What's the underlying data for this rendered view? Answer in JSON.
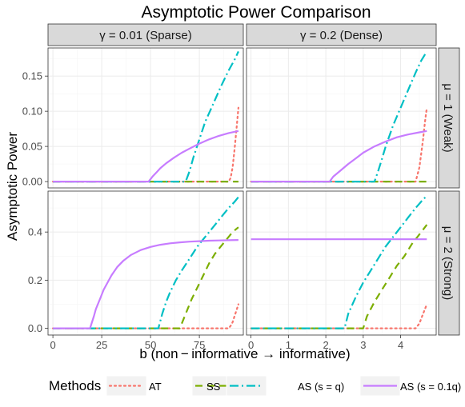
{
  "chart_data": {
    "type": "line",
    "title": "Asymptotic Power Comparison",
    "xlabel": "b (non − informative → informative)",
    "ylabel": "Asymptotic Power",
    "legend": {
      "title": "Methods",
      "placement": "bottom",
      "entries": [
        "AT",
        "SS",
        "AS (s = q)",
        "AS (s = 0.1q)"
      ]
    },
    "colors": {
      "AT": "#f8766d",
      "SS": "#7cae00",
      "AS (s = q)": "#00bfc4",
      "AS (s = 0.1q)": "#c77cff",
      "strip_bg": "#d9d9d9",
      "panel_bg": "#ffffff",
      "grid": "#ebebeb",
      "border": "#333333"
    },
    "grid": true,
    "col_strips": [
      "γ = 0.01 (Sparse)",
      "γ = 0.2 (Dense)"
    ],
    "row_strips": [
      "μ = 1 (Weak)",
      "μ = 2 (Strong)"
    ],
    "x_axes": [
      {
        "xlim": [
          -2.5,
          97.5
        ],
        "ticks": [
          0,
          25,
          50,
          75
        ],
        "tick_labels": [
          "0",
          "25",
          "50",
          "75"
        ]
      },
      {
        "xlim": [
          -0.12,
          4.95
        ],
        "ticks": [
          0,
          1,
          2,
          3,
          4
        ],
        "tick_labels": [
          "0",
          "1",
          "2",
          "3",
          "4"
        ]
      }
    ],
    "y_axes": [
      {
        "ylim": [
          -0.009,
          0.19
        ],
        "ticks": [
          0,
          0.05,
          0.1,
          0.15
        ],
        "tick_labels": [
          "0.00",
          "0.05",
          "0.10",
          "0.15"
        ]
      },
      {
        "ylim": [
          -0.028,
          0.57
        ],
        "ticks": [
          0,
          0.2,
          0.4
        ],
        "tick_labels": [
          "0.0",
          "0.2",
          "0.4"
        ]
      }
    ],
    "panels": [
      {
        "row": 0,
        "col": 0,
        "series": [
          {
            "name": "AT",
            "x": [
              0,
              90,
              91,
              92,
              93,
              94,
              95
            ],
            "y": [
              0,
              0,
              0.005,
              0.02,
              0.045,
              0.075,
              0.105
            ]
          },
          {
            "name": "SS",
            "x": [
              0,
              95
            ],
            "y": [
              0,
              0
            ]
          },
          {
            "name": "AS (s = q)",
            "x": [
              0,
              68,
              70,
              72,
              75,
              78,
              82,
              86,
              90,
              93,
              95
            ],
            "y": [
              0,
              0,
              0.015,
              0.035,
              0.06,
              0.085,
              0.11,
              0.135,
              0.158,
              0.173,
              0.185
            ]
          },
          {
            "name": "AS (s = 0.1q)",
            "x": [
              0,
              49,
              51,
              53,
              55,
              58,
              62,
              66,
              70,
              75,
              80,
              85,
              90,
              95
            ],
            "y": [
              0,
              0,
              0.007,
              0.013,
              0.019,
              0.026,
              0.034,
              0.041,
              0.047,
              0.054,
              0.06,
              0.065,
              0.069,
              0.072
            ]
          }
        ]
      },
      {
        "row": 0,
        "col": 1,
        "series": [
          {
            "name": "AT",
            "x": [
              0,
              4.4,
              4.5,
              4.55,
              4.6,
              4.65,
              4.7
            ],
            "y": [
              0,
              0,
              0.02,
              0.04,
              0.06,
              0.085,
              0.105
            ]
          },
          {
            "name": "SS",
            "x": [
              0,
              4.7
            ],
            "y": [
              0,
              0
            ]
          },
          {
            "name": "AS (s = q)",
            "x": [
              0,
              3.3,
              3.4,
              3.5,
              3.6,
              3.8,
              4.0,
              4.2,
              4.4,
              4.55,
              4.7
            ],
            "y": [
              0,
              0,
              0.015,
              0.032,
              0.05,
              0.08,
              0.105,
              0.13,
              0.155,
              0.172,
              0.185
            ]
          },
          {
            "name": "AS (s = 0.1q)",
            "x": [
              0,
              2.1,
              2.2,
              2.4,
              2.6,
              2.8,
              3.0,
              3.3,
              3.6,
              3.9,
              4.2,
              4.5,
              4.7
            ],
            "y": [
              0,
              0,
              0.007,
              0.016,
              0.025,
              0.033,
              0.041,
              0.05,
              0.057,
              0.063,
              0.067,
              0.07,
              0.072
            ]
          }
        ]
      },
      {
        "row": 1,
        "col": 0,
        "series": [
          {
            "name": "AT",
            "x": [
              0,
              90,
              91,
              92,
              93,
              94,
              95
            ],
            "y": [
              0,
              0,
              0.01,
              0.025,
              0.05,
              0.075,
              0.1
            ]
          },
          {
            "name": "SS",
            "x": [
              0,
              65,
              68,
              71,
              74,
              77,
              80,
              83,
              86,
              89,
              92,
              95
            ],
            "y": [
              0,
              0,
              0.06,
              0.12,
              0.17,
              0.22,
              0.27,
              0.31,
              0.34,
              0.37,
              0.4,
              0.42
            ]
          },
          {
            "name": "AS (s = q)",
            "x": [
              0,
              54,
              56,
              58,
              60,
              63,
              66,
              70,
              74,
              78,
              82,
              86,
              90,
              93,
              95
            ],
            "y": [
              0,
              0,
              0.06,
              0.11,
              0.15,
              0.2,
              0.24,
              0.29,
              0.34,
              0.38,
              0.42,
              0.46,
              0.5,
              0.525,
              0.545
            ]
          },
          {
            "name": "AS (s = 0.1q)",
            "x": [
              0,
              19,
              20,
              21,
              22,
              24,
              26,
              28,
              30,
              33,
              36,
              40,
              45,
              50,
              55,
              60,
              65,
              70,
              75,
              80,
              85,
              90,
              95
            ],
            "y": [
              0,
              0,
              0.025,
              0.05,
              0.08,
              0.12,
              0.16,
              0.19,
              0.22,
              0.255,
              0.28,
              0.305,
              0.325,
              0.338,
              0.347,
              0.353,
              0.357,
              0.36,
              0.362,
              0.364,
              0.365,
              0.366,
              0.367
            ]
          }
        ]
      },
      {
        "row": 1,
        "col": 1,
        "series": [
          {
            "name": "AT",
            "x": [
              0,
              4.4,
              4.5,
              4.55,
              4.6,
              4.65,
              4.7
            ],
            "y": [
              0,
              0,
              0.02,
              0.04,
              0.06,
              0.08,
              0.1
            ]
          },
          {
            "name": "SS",
            "x": [
              0,
              3.0,
              3.1,
              3.3,
              3.5,
              3.7,
              3.9,
              4.1,
              4.3,
              4.5,
              4.7
            ],
            "y": [
              0,
              0,
              0.05,
              0.11,
              0.16,
              0.21,
              0.26,
              0.3,
              0.35,
              0.39,
              0.43
            ]
          },
          {
            "name": "AS (s = q)",
            "x": [
              0,
              2.5,
              2.6,
              2.8,
              3.0,
              3.2,
              3.4,
              3.6,
              3.8,
              4.0,
              4.2,
              4.4,
              4.6,
              4.7
            ],
            "y": [
              0,
              0,
              0.06,
              0.13,
              0.19,
              0.24,
              0.29,
              0.34,
              0.38,
              0.42,
              0.46,
              0.5,
              0.535,
              0.55
            ]
          },
          {
            "name": "AS (s = 0.1q)",
            "x": [
              0,
              4.7
            ],
            "y": [
              0.37,
              0.37
            ]
          }
        ]
      }
    ]
  }
}
